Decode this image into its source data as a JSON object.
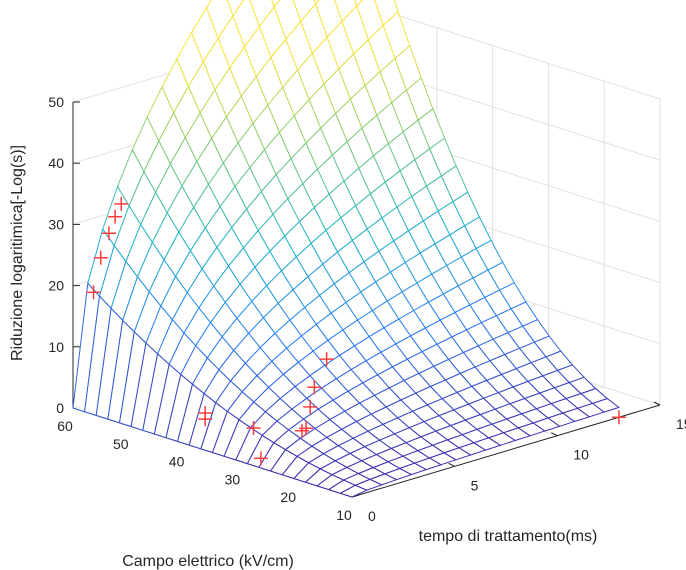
{
  "chart_data": {
    "type": "surface3d",
    "xlabel": "tempo di trattamento(ms)",
    "ylabel": "Campo elettrico (kV/cm)",
    "zlabel": "Riduzione logaritimica[-Log(s)]",
    "x_ticks": [
      "0",
      "5",
      "10",
      "15"
    ],
    "y_ticks": [
      "10",
      "20",
      "30",
      "40",
      "50",
      "60"
    ],
    "z_ticks": [
      "0",
      "10",
      "20",
      "30",
      "40",
      "50"
    ],
    "xlim": [
      0,
      15
    ],
    "ylim": [
      10,
      60
    ],
    "zlim": [
      0,
      50
    ],
    "grid": true,
    "surface": {
      "model": "z = k * E^a * t^b",
      "k": 0.00283,
      "a": 2.2,
      "b": 0.5,
      "t_range": [
        0,
        13
      ],
      "E_range": [
        10,
        60
      ],
      "t_steps": 18,
      "E_steps": 24,
      "colormap": [
        "#3e26a8",
        "#2f7cf6",
        "#21b5cc",
        "#81cc7a",
        "#f9e43d"
      ]
    },
    "markers": {
      "series_name": "",
      "color": "#ff3b3b",
      "points": [
        {
          "t": 1,
          "E": 60,
          "z": 17.9
        },
        {
          "t": 1.35,
          "E": 60,
          "z": 23.2
        },
        {
          "t": 1.75,
          "E": 60,
          "z": 26.8
        },
        {
          "t": 2.05,
          "E": 60,
          "z": 29.2
        },
        {
          "t": 2.35,
          "E": 60,
          "z": 31
        },
        {
          "t": 1,
          "E": 40,
          "z": 4
        },
        {
          "t": 1,
          "E": 40,
          "z": 3
        },
        {
          "t": 2,
          "E": 35,
          "z": 2
        },
        {
          "t": 3,
          "E": 30,
          "z": 2
        },
        {
          "t": 3.2,
          "E": 30,
          "z": 2.2
        },
        {
          "t": 3.4,
          "E": 30,
          "z": 5.5
        },
        {
          "t": 3.6,
          "E": 30,
          "z": 8.5
        },
        {
          "t": 4.2,
          "E": 30,
          "z": 12.5
        },
        {
          "t": 1,
          "E": 30,
          "z": -0.5
        },
        {
          "t": 13,
          "E": 10,
          "z": 0
        }
      ]
    }
  }
}
